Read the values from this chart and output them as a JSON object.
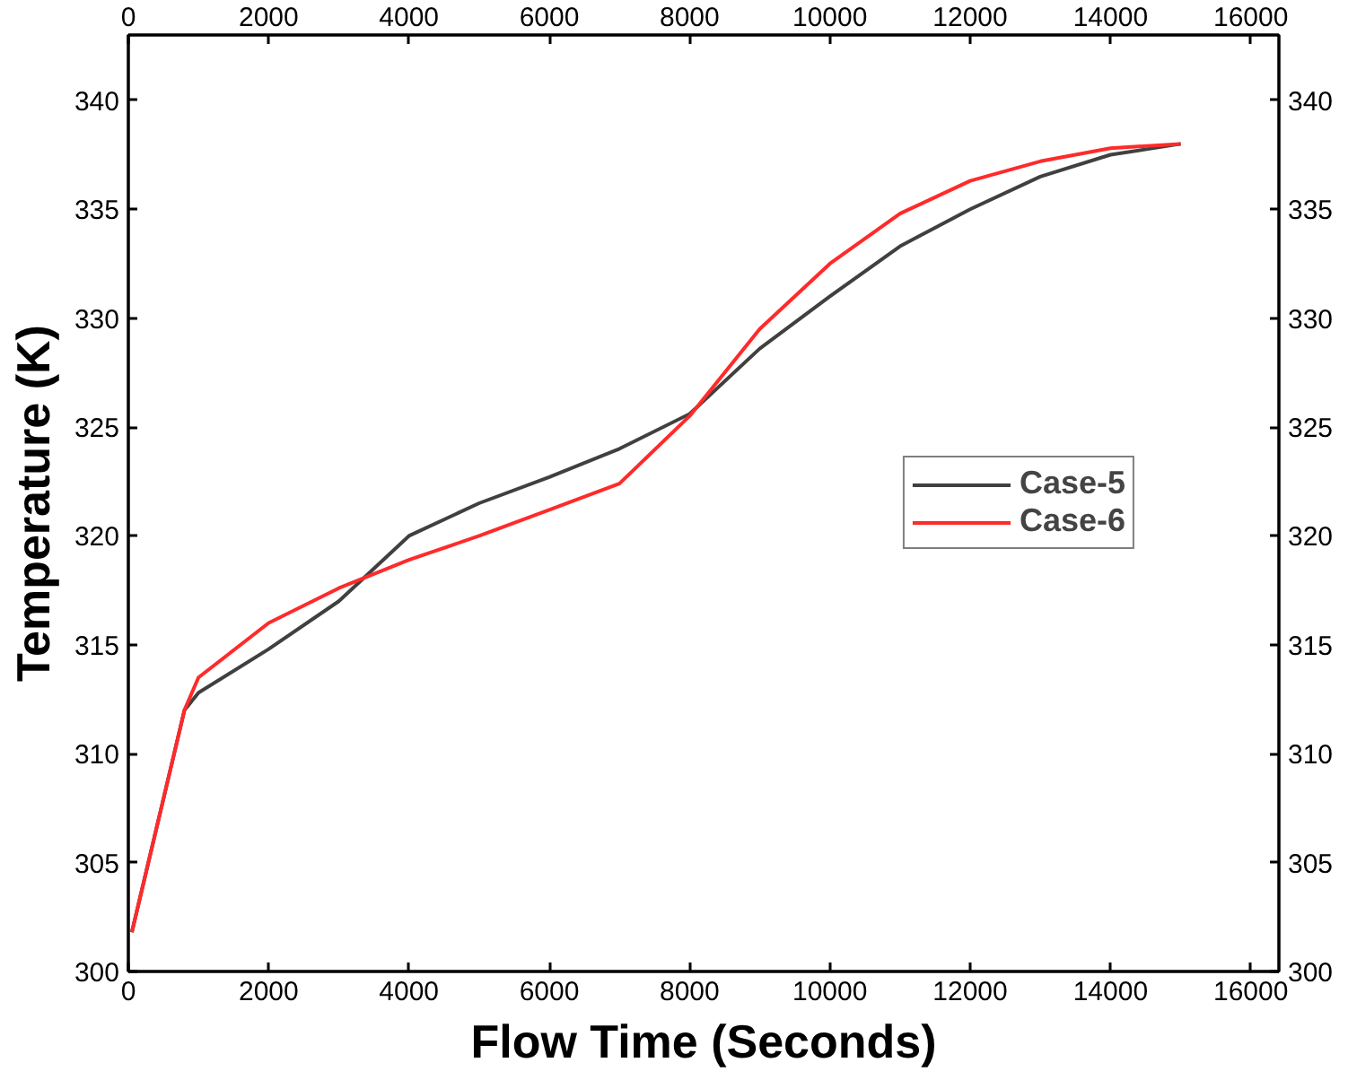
{
  "chart_data": {
    "type": "line",
    "xlabel": "Flow Time (Seconds)",
    "ylabel": "Temperature (K)",
    "xlim": [
      0,
      16400
    ],
    "ylim": [
      300,
      343
    ],
    "xticks": [
      0,
      2000,
      4000,
      6000,
      8000,
      10000,
      12000,
      14000,
      16000
    ],
    "yticks": [
      300,
      305,
      310,
      315,
      320,
      325,
      330,
      335,
      340
    ],
    "x2lim": [
      0,
      16400
    ],
    "x2ticks": [
      0,
      2000,
      4000,
      6000,
      8000,
      10000,
      12000,
      14000,
      16000
    ],
    "y2lim": [
      300,
      343
    ],
    "y2ticks": [
      300,
      305,
      310,
      315,
      320,
      325,
      330,
      335,
      340
    ],
    "grid": false,
    "legend": "right",
    "x": [
      50,
      800,
      1000,
      2000,
      3000,
      4000,
      5000,
      6000,
      7000,
      8000,
      9000,
      10000,
      11000,
      12000,
      13000,
      14000,
      15000
    ],
    "series": [
      {
        "name": "Case-5",
        "color": "#404040",
        "values": [
          301.8,
          312,
          312.8,
          314.8,
          317,
          320,
          321.5,
          322.7,
          324,
          325.6,
          328.6,
          331,
          333.3,
          335,
          336.5,
          337.5,
          338
        ]
      },
      {
        "name": "Case-6",
        "color": "#ff2a2a",
        "values": [
          301.8,
          312,
          313.5,
          316,
          317.6,
          318.9,
          320,
          321.2,
          322.4,
          325.5,
          329.5,
          332.5,
          334.8,
          336.3,
          337.2,
          337.8,
          338
        ]
      }
    ]
  }
}
